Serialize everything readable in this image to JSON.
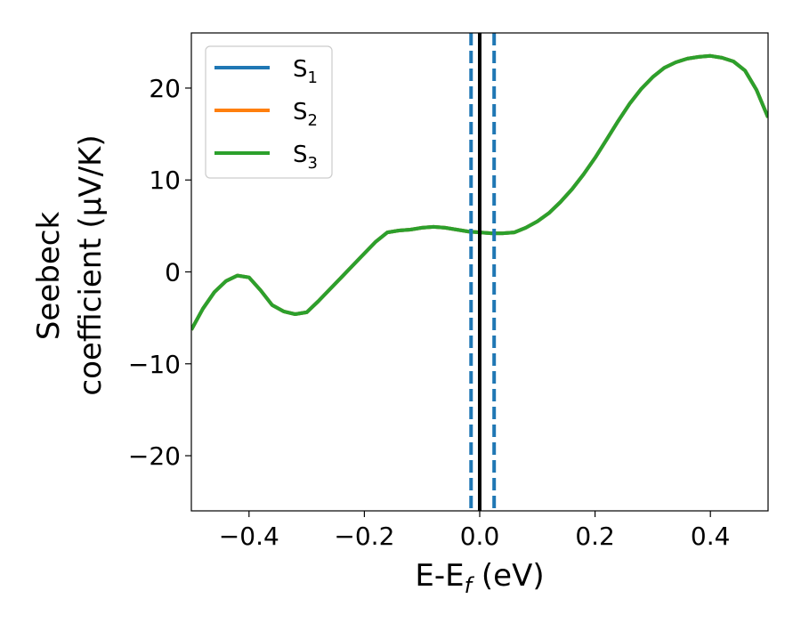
{
  "chart_data": {
    "type": "line",
    "xlabel": "E-E",
    "xlabel_sub": "f",
    "xlabel_unit": " (eV)",
    "ylabel_line1": "Seebeck",
    "ylabel_line2": "coefficient  (μV/K)",
    "xlim": [
      -0.5,
      0.5
    ],
    "ylim": [
      -26,
      26
    ],
    "xticks": [
      -0.4,
      -0.2,
      0.0,
      0.2,
      0.4
    ],
    "xtick_labels": [
      "−0.4",
      "−0.2",
      "0.0",
      "0.2",
      "0.4"
    ],
    "yticks": [
      -20,
      -10,
      0,
      10,
      20
    ],
    "ytick_labels": [
      "−20",
      "−10",
      "0",
      "10",
      "20"
    ],
    "grid": false,
    "legend_position": "top-left",
    "vlines": [
      {
        "x": 0.0,
        "style": "solid",
        "color": "#000000"
      },
      {
        "x": -0.015,
        "style": "dashed",
        "color": "#1f77b4"
      },
      {
        "x": 0.025,
        "style": "dashed",
        "color": "#1f77b4"
      }
    ],
    "x": [
      -0.5,
      -0.48,
      -0.46,
      -0.44,
      -0.42,
      -0.4,
      -0.38,
      -0.36,
      -0.34,
      -0.32,
      -0.3,
      -0.28,
      -0.26,
      -0.24,
      -0.22,
      -0.2,
      -0.18,
      -0.16,
      -0.14,
      -0.12,
      -0.1,
      -0.08,
      -0.06,
      -0.04,
      -0.02,
      0.0,
      0.02,
      0.04,
      0.06,
      0.08,
      0.1,
      0.12,
      0.14,
      0.16,
      0.18,
      0.2,
      0.22,
      0.24,
      0.26,
      0.28,
      0.3,
      0.32,
      0.34,
      0.36,
      0.38,
      0.4,
      0.42,
      0.44,
      0.46,
      0.48,
      0.5
    ],
    "series": [
      {
        "name": "S",
        "sub": "1",
        "color": "#1f77b4",
        "values": [
          -6.3,
          -4.0,
          -2.2,
          -1.0,
          -0.4,
          -0.6,
          -2.0,
          -3.6,
          -4.3,
          -4.6,
          -4.4,
          -3.2,
          -1.9,
          -0.6,
          0.7,
          2.0,
          3.3,
          4.3,
          4.5,
          4.6,
          4.8,
          4.9,
          4.8,
          4.6,
          4.4,
          4.3,
          4.2,
          4.2,
          4.3,
          4.8,
          5.5,
          6.4,
          7.6,
          9.0,
          10.6,
          12.4,
          14.4,
          16.4,
          18.3,
          19.9,
          21.2,
          22.2,
          22.8,
          23.2,
          23.4,
          23.5,
          23.3,
          22.9,
          21.9,
          19.8,
          16.8
        ]
      },
      {
        "name": "S",
        "sub": "2",
        "color": "#ff7f0e",
        "values": [
          -6.3,
          -4.0,
          -2.2,
          -1.0,
          -0.4,
          -0.6,
          -2.0,
          -3.6,
          -4.3,
          -4.6,
          -4.4,
          -3.2,
          -1.9,
          -0.6,
          0.7,
          2.0,
          3.3,
          4.3,
          4.5,
          4.6,
          4.8,
          4.9,
          4.8,
          4.6,
          4.4,
          4.3,
          4.2,
          4.2,
          4.3,
          4.8,
          5.5,
          6.4,
          7.6,
          9.0,
          10.6,
          12.4,
          14.4,
          16.4,
          18.3,
          19.9,
          21.2,
          22.2,
          22.8,
          23.2,
          23.4,
          23.5,
          23.3,
          22.9,
          21.9,
          19.8,
          16.8
        ]
      },
      {
        "name": "S",
        "sub": "3",
        "color": "#2ca02c",
        "values": [
          -6.3,
          -4.0,
          -2.2,
          -1.0,
          -0.4,
          -0.6,
          -2.0,
          -3.6,
          -4.3,
          -4.6,
          -4.4,
          -3.2,
          -1.9,
          -0.6,
          0.7,
          2.0,
          3.3,
          4.3,
          4.5,
          4.6,
          4.8,
          4.9,
          4.8,
          4.6,
          4.4,
          4.3,
          4.2,
          4.2,
          4.3,
          4.8,
          5.5,
          6.4,
          7.6,
          9.0,
          10.6,
          12.4,
          14.4,
          16.4,
          18.3,
          19.9,
          21.2,
          22.2,
          22.8,
          23.2,
          23.4,
          23.5,
          23.3,
          22.9,
          21.9,
          19.8,
          16.8
        ]
      }
    ]
  }
}
